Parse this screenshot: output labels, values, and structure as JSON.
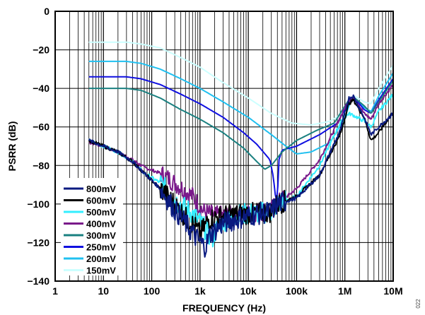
{
  "chart_data": {
    "type": "line",
    "xlabel": "FREQUENCY (Hz)",
    "ylabel": "PSRR (dB)",
    "x_scale": "log",
    "xlim": [
      1,
      10000000
    ],
    "ylim": [
      -140,
      0
    ],
    "grid": true,
    "legend_position": "bottom-left",
    "x_ticks": [
      {
        "value": 1,
        "label": "1"
      },
      {
        "value": 10,
        "label": "10"
      },
      {
        "value": 100,
        "label": "100"
      },
      {
        "value": 1000,
        "label": "1k"
      },
      {
        "value": 10000,
        "label": "10k"
      },
      {
        "value": 100000,
        "label": "100k"
      },
      {
        "value": 1000000,
        "label": "1M"
      },
      {
        "value": 10000000,
        "label": "10M"
      }
    ],
    "y_ticks": [
      0,
      -20,
      -40,
      -60,
      -80,
      -100,
      -120,
      -140
    ],
    "series": [
      {
        "name": "800mV",
        "color": "#0a1a80",
        "noise": 1.8,
        "points": [
          [
            5,
            -67
          ],
          [
            10,
            -70
          ],
          [
            20,
            -73
          ],
          [
            40,
            -78
          ],
          [
            70,
            -84
          ],
          [
            150,
            -92
          ],
          [
            300,
            -103
          ],
          [
            500,
            -110
          ],
          [
            800,
            -117
          ],
          [
            1000,
            -120
          ],
          [
            1300,
            -122
          ],
          [
            1600,
            -116
          ],
          [
            3000,
            -110
          ],
          [
            10000,
            -106
          ],
          [
            30000,
            -104
          ],
          [
            40000,
            -100
          ],
          [
            100000,
            -97
          ],
          [
            300000,
            -85
          ],
          [
            800000,
            -62
          ],
          [
            1200000,
            -45
          ],
          [
            1500000,
            -44
          ],
          [
            2500000,
            -55
          ],
          [
            3500000,
            -64
          ],
          [
            5000000,
            -60
          ],
          [
            10000000,
            -53
          ]
        ]
      },
      {
        "name": "600mV",
        "color": "#000000",
        "noise": 1.8,
        "points": [
          [
            5,
            -67
          ],
          [
            10,
            -70
          ],
          [
            20,
            -73
          ],
          [
            40,
            -78
          ],
          [
            70,
            -84
          ],
          [
            150,
            -92
          ],
          [
            300,
            -100
          ],
          [
            500,
            -107
          ],
          [
            800,
            -112
          ],
          [
            1000,
            -116
          ],
          [
            1500,
            -108
          ],
          [
            3000,
            -106
          ],
          [
            10000,
            -105
          ],
          [
            30000,
            -104
          ],
          [
            40000,
            -100
          ],
          [
            100000,
            -96
          ],
          [
            300000,
            -85
          ],
          [
            800000,
            -64
          ],
          [
            1200000,
            -48
          ],
          [
            1500000,
            -46
          ],
          [
            2500000,
            -55
          ],
          [
            3500000,
            -67
          ],
          [
            5000000,
            -63
          ],
          [
            10000000,
            -52
          ]
        ]
      },
      {
        "name": "500mV",
        "color": "#33eeff",
        "noise": 1.8,
        "points": [
          [
            5,
            -67
          ],
          [
            10,
            -70
          ],
          [
            20,
            -73
          ],
          [
            40,
            -78
          ],
          [
            70,
            -84
          ],
          [
            150,
            -89
          ],
          [
            300,
            -98
          ],
          [
            700,
            -105
          ],
          [
            1200,
            -112
          ],
          [
            1800,
            -118
          ],
          [
            2500,
            -110
          ],
          [
            5000,
            -106
          ],
          [
            10000,
            -105
          ],
          [
            30000,
            -104
          ],
          [
            40000,
            -100
          ],
          [
            100000,
            -96
          ],
          [
            300000,
            -80
          ],
          [
            800000,
            -58
          ],
          [
            1200000,
            -53
          ],
          [
            1500000,
            -54
          ],
          [
            2500000,
            -57
          ],
          [
            3500000,
            -60
          ],
          [
            5000000,
            -52
          ],
          [
            10000000,
            -43
          ]
        ]
      },
      {
        "name": "400mV",
        "color": "#7a1a8a",
        "noise": 1.6,
        "points": [
          [
            5,
            -68
          ],
          [
            10,
            -70
          ],
          [
            20,
            -73
          ],
          [
            40,
            -77
          ],
          [
            70,
            -81
          ],
          [
            150,
            -84
          ],
          [
            300,
            -89
          ],
          [
            700,
            -96
          ],
          [
            1200,
            -104
          ],
          [
            2000,
            -106
          ],
          [
            5000,
            -106
          ],
          [
            10000,
            -105
          ],
          [
            30000,
            -103
          ],
          [
            40000,
            -100
          ],
          [
            100000,
            -92
          ],
          [
            300000,
            -77
          ],
          [
            700000,
            -58
          ],
          [
            1200000,
            -46
          ],
          [
            1600000,
            -45
          ],
          [
            2500000,
            -53
          ],
          [
            3500000,
            -56
          ],
          [
            5000000,
            -48
          ],
          [
            10000000,
            -38
          ]
        ]
      },
      {
        "name": "300mV",
        "color": "#1a8080",
        "noise": 0,
        "points": [
          [
            5,
            -40
          ],
          [
            30,
            -40
          ],
          [
            60,
            -41
          ],
          [
            150,
            -45
          ],
          [
            400,
            -51
          ],
          [
            1000,
            -56
          ],
          [
            3000,
            -63
          ],
          [
            8000,
            -71
          ],
          [
            15000,
            -78
          ],
          [
            22000,
            -82
          ],
          [
            30000,
            -80
          ],
          [
            50000,
            -73
          ],
          [
            100000,
            -67
          ],
          [
            250000,
            -62
          ],
          [
            600000,
            -58
          ],
          [
            1200000,
            -46
          ],
          [
            1600000,
            -45
          ],
          [
            2500000,
            -49
          ],
          [
            3500000,
            -53
          ],
          [
            5000000,
            -47
          ],
          [
            10000000,
            -36
          ]
        ]
      },
      {
        "name": "250mV",
        "color": "#1010e0",
        "noise": 0,
        "points": [
          [
            5,
            -34
          ],
          [
            30,
            -34
          ],
          [
            60,
            -35
          ],
          [
            150,
            -38
          ],
          [
            400,
            -43
          ],
          [
            1000,
            -48
          ],
          [
            3000,
            -55
          ],
          [
            8000,
            -63
          ],
          [
            15000,
            -69
          ],
          [
            28000,
            -77
          ],
          [
            33000,
            -86
          ],
          [
            36000,
            -95
          ],
          [
            40000,
            -100
          ],
          [
            42000,
            -78
          ],
          [
            50000,
            -72
          ],
          [
            100000,
            -70
          ],
          [
            300000,
            -64
          ],
          [
            700000,
            -58
          ],
          [
            1200000,
            -47
          ],
          [
            1600000,
            -45
          ],
          [
            2500000,
            -51
          ],
          [
            3500000,
            -53
          ],
          [
            5000000,
            -46
          ],
          [
            10000000,
            -35
          ]
        ]
      },
      {
        "name": "200mV",
        "color": "#20c0f0",
        "noise": 0,
        "points": [
          [
            5,
            -26
          ],
          [
            30,
            -26
          ],
          [
            60,
            -27
          ],
          [
            150,
            -30
          ],
          [
            400,
            -35
          ],
          [
            1000,
            -40
          ],
          [
            3000,
            -47
          ],
          [
            10000,
            -55
          ],
          [
            30000,
            -64
          ],
          [
            60000,
            -70
          ],
          [
            100000,
            -74
          ],
          [
            200000,
            -73
          ],
          [
            500000,
            -68
          ],
          [
            1000000,
            -55
          ],
          [
            1300000,
            -47
          ],
          [
            1600000,
            -45
          ],
          [
            2500000,
            -50
          ],
          [
            3500000,
            -52
          ],
          [
            5000000,
            -44
          ],
          [
            10000000,
            -32
          ]
        ]
      },
      {
        "name": "150mV",
        "color": "#ccffff",
        "noise": 0,
        "points": [
          [
            5,
            -16
          ],
          [
            30,
            -16
          ],
          [
            60,
            -17
          ],
          [
            150,
            -19
          ],
          [
            400,
            -24
          ],
          [
            1000,
            -29
          ],
          [
            3000,
            -37
          ],
          [
            10000,
            -45
          ],
          [
            30000,
            -53
          ],
          [
            80000,
            -58
          ],
          [
            200000,
            -59
          ],
          [
            500000,
            -57
          ],
          [
            1000000,
            -52
          ],
          [
            1300000,
            -46
          ],
          [
            1600000,
            -44
          ],
          [
            2500000,
            -47
          ],
          [
            3500000,
            -48
          ],
          [
            5000000,
            -40
          ],
          [
            10000000,
            -28
          ]
        ]
      }
    ]
  },
  "figure_id": "022"
}
